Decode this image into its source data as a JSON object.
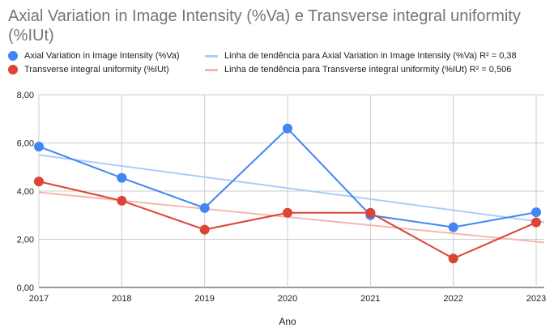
{
  "chart_data": {
    "type": "line",
    "title": "Axial Variation in Image Intensity (%Va) e Transverse integral uniformity (%IUt)",
    "xlabel": "Ano",
    "ylabel": "",
    "x": [
      "2017",
      "2018",
      "2019",
      "2020",
      "2021",
      "2022",
      "2023"
    ],
    "ylim": [
      0,
      8
    ],
    "yticks": [
      "0,00",
      "2,00",
      "4,00",
      "6,00",
      "8,00"
    ],
    "grid": true,
    "legend_position": "top",
    "series": [
      {
        "name": "Axial Variation in Image Intensity (%Va)",
        "color": "#4285f4",
        "values": [
          5.85,
          4.55,
          3.3,
          6.6,
          3.0,
          2.5,
          3.12
        ]
      },
      {
        "name": "Transverse integral uniformity (%IUt)",
        "color": "#db4437",
        "values": [
          4.4,
          3.6,
          2.4,
          3.1,
          3.1,
          1.2,
          2.7
        ]
      }
    ],
    "trendlines": [
      {
        "name": "Linha de tendência para Axial Variation in Image Intensity (%Va) R² = 0,38",
        "color": "#aecbfa",
        "start": 5.5,
        "end": 2.75
      },
      {
        "name": "Linha de tendência para Transverse integral uniformity (%IUt) R² = 0,506",
        "color": "#f4b7b2",
        "start": 3.95,
        "end": 1.9
      }
    ]
  }
}
